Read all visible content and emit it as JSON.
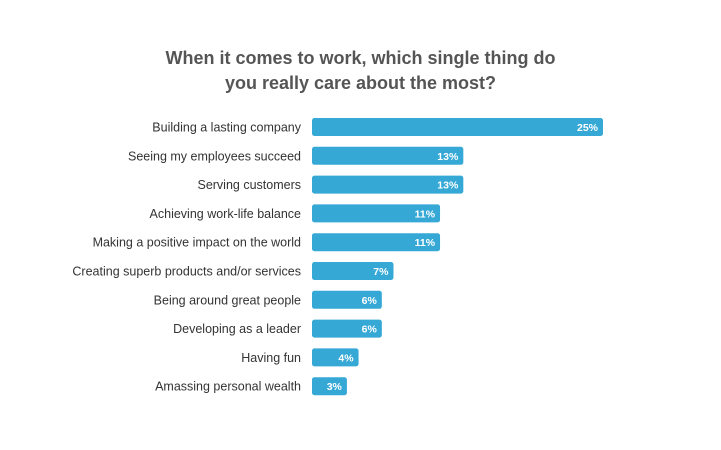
{
  "title": {
    "line1": "When it comes to work, which single thing do",
    "line2": "you really care about the most?"
  },
  "colors": {
    "bar": "#35a8d6"
  },
  "chart_data": {
    "type": "bar",
    "orientation": "horizontal",
    "title": "When it comes to work, which single thing do you really care about the most?",
    "xlabel": "",
    "ylabel": "",
    "xlim": [
      0,
      25
    ],
    "grid": false,
    "legend": "none",
    "unit": "%",
    "categories": [
      "Building a lasting company",
      "Seeing my employees succeed",
      "Serving customers",
      "Achieving work-life balance",
      "Making a positive impact on the world",
      "Creating superb products and/or services",
      "Being around great people",
      "Developing as a leader",
      "Having fun",
      "Amassing personal wealth"
    ],
    "values": [
      25,
      13,
      13,
      11,
      11,
      7,
      6,
      6,
      4,
      3
    ],
    "value_labels": [
      "25%",
      "13%",
      "13%",
      "11%",
      "11%",
      "7%",
      "6%",
      "6%",
      "4%",
      "3%"
    ]
  }
}
